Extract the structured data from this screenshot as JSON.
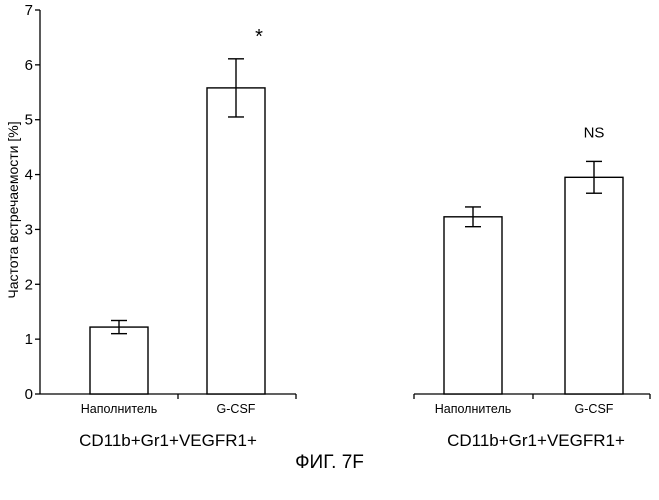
{
  "figure_caption": "ФИГ. 7F",
  "chart_data": {
    "type": "bar",
    "ylabel": "Частота встречаемости [%]",
    "ylim": [
      0,
      7
    ],
    "yticks": [
      0,
      1,
      2,
      3,
      4,
      5,
      6,
      7
    ],
    "grid": false,
    "groups": [
      {
        "label": "CD11b+Gr1+VEGFR1+",
        "bars": [
          {
            "category": "Наполнитель",
            "value": 1.22,
            "error": 0.12,
            "annotation": ""
          },
          {
            "category": "G-CSF",
            "value": 5.58,
            "error": 0.53,
            "annotation": "*"
          }
        ]
      },
      {
        "label": "CD11b+Gr1+VEGFR1+",
        "bars": [
          {
            "category": "Наполнитель",
            "value": 3.23,
            "error": 0.18,
            "annotation": ""
          },
          {
            "category": "G-CSF",
            "value": 3.95,
            "error": 0.29,
            "annotation": "NS"
          }
        ]
      }
    ]
  }
}
